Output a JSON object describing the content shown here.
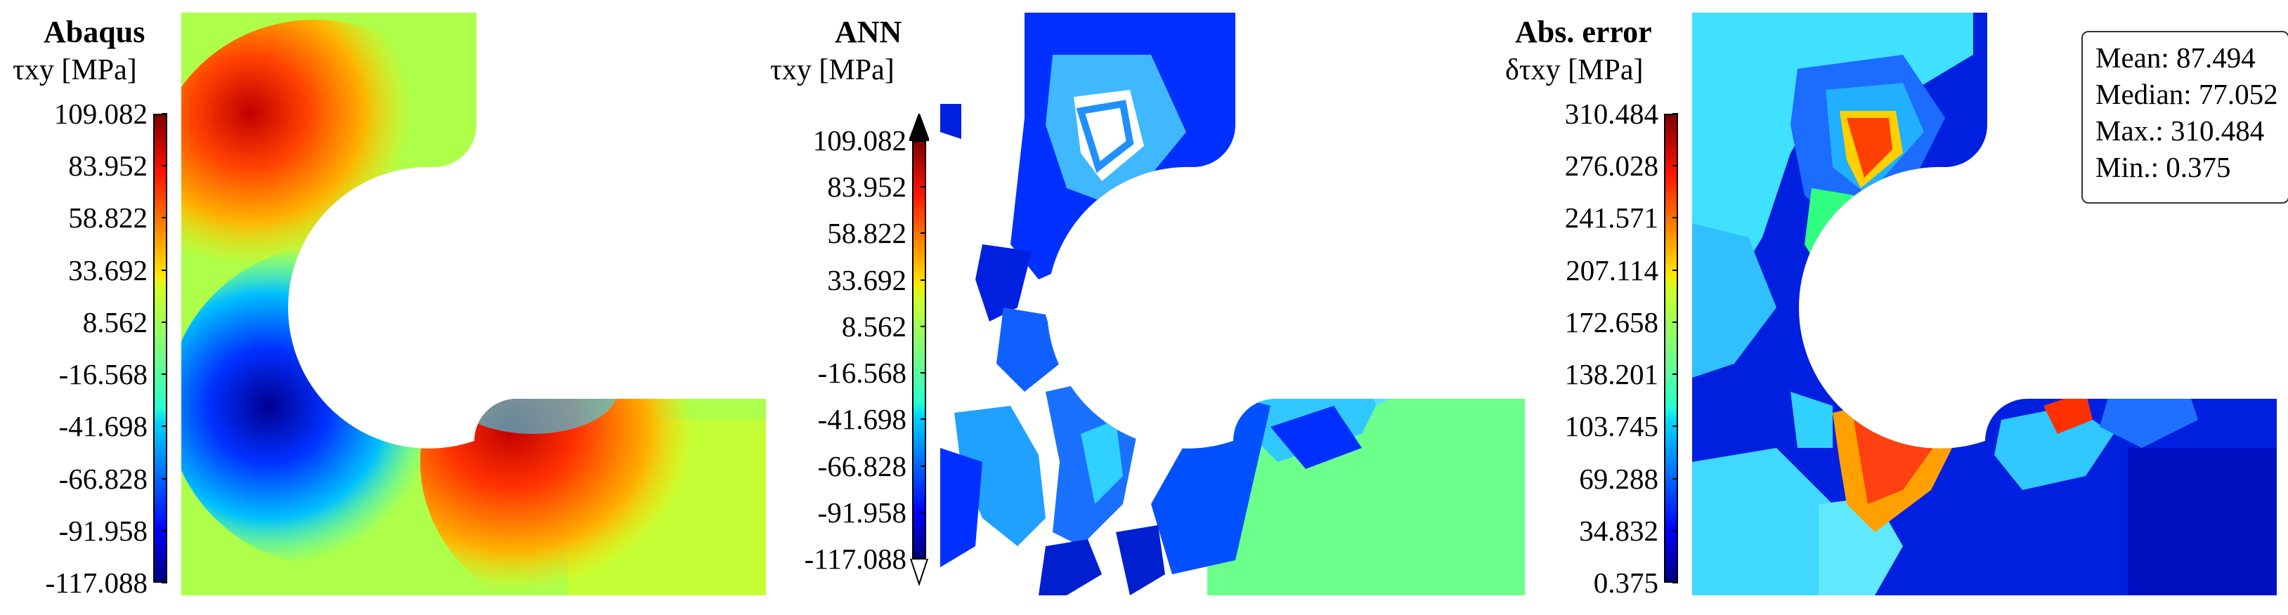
{
  "chart_data": [
    {
      "type": "heatmap",
      "title": "Abaqus",
      "quantity": "τxy [MPa]",
      "colorbar_ticks": [
        "109.082",
        "83.952",
        "58.822",
        "33.692",
        "8.562",
        "-16.568",
        "-41.698",
        "-66.828",
        "-91.958",
        "-117.088"
      ],
      "range": [
        -117.088,
        109.082
      ],
      "colormap": "jet"
    },
    {
      "type": "heatmap",
      "title": "ANN",
      "quantity": "τxy [MPa]",
      "colorbar_ticks": [
        "109.082",
        "83.952",
        "58.822",
        "33.692",
        "8.562",
        "-16.568",
        "-41.698",
        "-66.828",
        "-91.958",
        "-117.088"
      ],
      "range": [
        -117.088,
        109.082
      ],
      "colormap": "jet",
      "colorbar_extend": "both"
    },
    {
      "type": "heatmap",
      "title": "Abs. error",
      "quantity": "δτxy [MPa]",
      "colorbar_ticks": [
        "310.484",
        "276.028",
        "241.571",
        "207.114",
        "172.658",
        "138.201",
        "103.745",
        "69.288",
        "34.832",
        "0.375"
      ],
      "range": [
        0.375,
        310.484
      ],
      "colormap": "jet",
      "stats": {
        "mean": "Mean: 87.494",
        "median": "Median: 77.052",
        "max": "Max.: 310.484",
        "min": "Min.: 0.375"
      }
    }
  ]
}
